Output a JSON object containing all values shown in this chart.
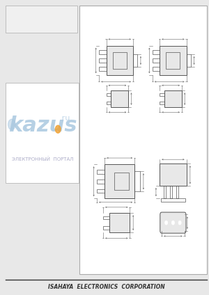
{
  "bg_color": "#e8e8e8",
  "page_bg": "#ffffff",
  "footer_text": "ISAHAYA  ELECTRONICS  CORPORATION",
  "line_color": "#555555",
  "dim_color": "#666666",
  "watermark_text1": "kazus",
  "watermark_text2": "ЭЛЕКТРОННЫЙ  ПОРТАЛ",
  "watermark_color": "#aac8e0",
  "watermark_dot_color": "#f0a030"
}
